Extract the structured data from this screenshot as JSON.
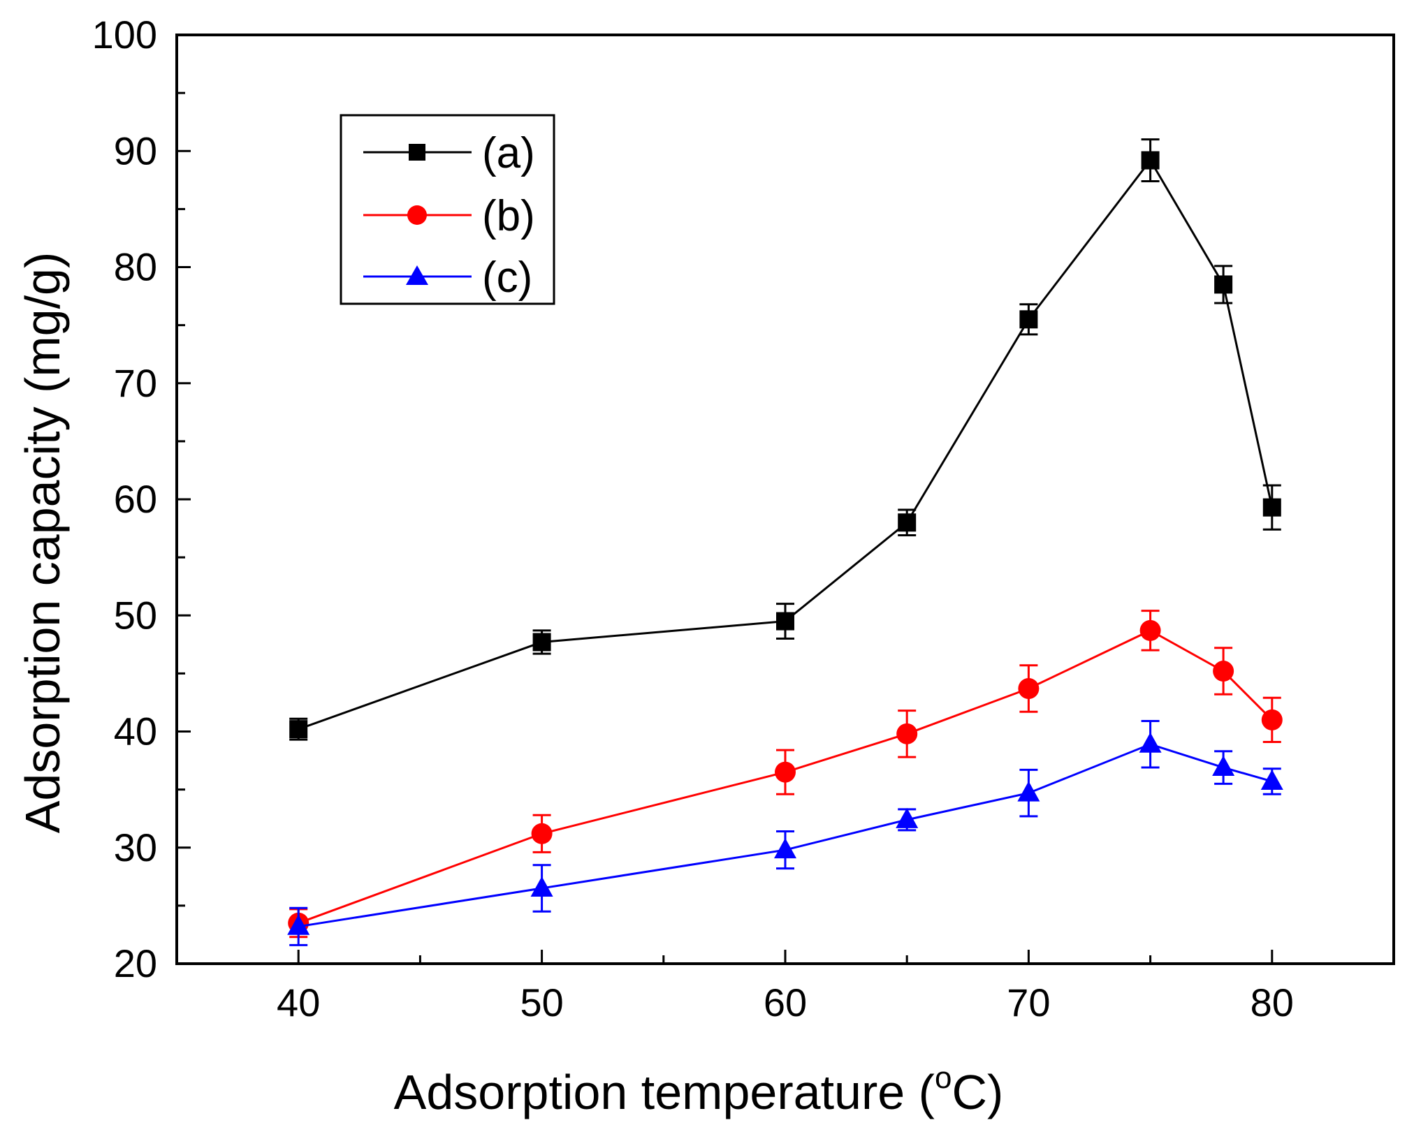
{
  "chart_data": {
    "type": "line",
    "title": "",
    "xlabel": "Adsorption temperature (",
    "xlabel_sup": "o",
    "xlabel_suffix": "C)",
    "ylabel": "Adsorption capacity (mg/g)",
    "xlim": [
      35,
      85
    ],
    "ylim": [
      20,
      100
    ],
    "xticks": [
      40,
      50,
      60,
      70,
      80
    ],
    "yticks": [
      20,
      30,
      40,
      50,
      60,
      70,
      80,
      90,
      100
    ],
    "grid": false,
    "legend_position": "top-left",
    "x": [
      40,
      50,
      60,
      65,
      70,
      75,
      78,
      80
    ],
    "series": [
      {
        "name": "(a)",
        "color": "#000000",
        "marker": "square",
        "values": [
          40.2,
          47.7,
          49.5,
          58.0,
          75.5,
          89.2,
          78.5,
          59.3
        ],
        "errors": [
          0.9,
          1.0,
          1.5,
          1.1,
          1.3,
          1.8,
          1.6,
          1.9
        ]
      },
      {
        "name": "(b)",
        "color": "#ff0000",
        "marker": "circle",
        "values": [
          23.5,
          31.2,
          36.5,
          39.8,
          43.7,
          48.7,
          45.2,
          41.0
        ],
        "errors": [
          1.2,
          1.6,
          1.9,
          2.0,
          2.0,
          1.7,
          2.0,
          1.9
        ]
      },
      {
        "name": "(c)",
        "color": "#0000ff",
        "marker": "triangle",
        "values": [
          23.2,
          26.5,
          29.8,
          32.4,
          34.7,
          38.9,
          36.9,
          35.7
        ],
        "errors": [
          1.6,
          2.0,
          1.6,
          0.9,
          2.0,
          2.0,
          1.4,
          1.1
        ]
      }
    ]
  }
}
